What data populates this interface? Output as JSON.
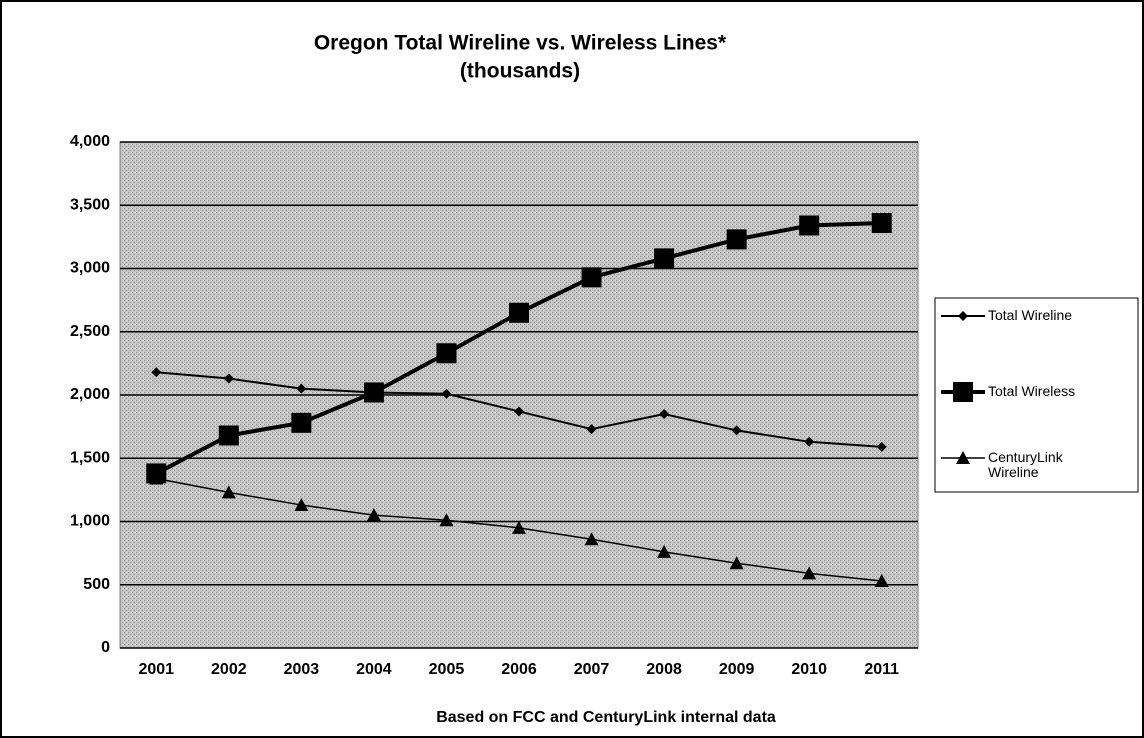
{
  "chart_data": {
    "type": "line",
    "title": "Oregon Total Wireline vs. Wireless Lines*",
    "subtitle": "(thousands)",
    "x_label": "Based on FCC and CenturyLink internal data",
    "categories": [
      "2001",
      "2002",
      "2003",
      "2004",
      "2005",
      "2006",
      "2007",
      "2008",
      "2009",
      "2010",
      "2011"
    ],
    "series": [
      {
        "name": "Total Wireline",
        "color": "#000000",
        "marker": "diamond",
        "values": [
          2180,
          2130,
          2050,
          2020,
          2010,
          1870,
          1730,
          1850,
          1720,
          1630,
          1590
        ]
      },
      {
        "name": "Total Wireless",
        "color": "#000000",
        "marker": "square",
        "values": [
          1380,
          1680,
          1780,
          2020,
          2330,
          2650,
          2930,
          3080,
          3230,
          3340,
          3360
        ]
      },
      {
        "name": "CenturyLink Wireline",
        "color": "#000000",
        "marker": "triangle",
        "values": [
          1340,
          1230,
          1130,
          1050,
          1010,
          950,
          860,
          760,
          670,
          590,
          530
        ]
      }
    ],
    "ylim": [
      0,
      4000
    ],
    "yticks": [
      0,
      500,
      {
        "value": 1000,
        "label": "1,000"
      },
      {
        "value": 1500,
        "label": "1,500"
      },
      {
        "value": 2000,
        "label": "2,000"
      },
      {
        "value": 2500,
        "label": "2,500"
      },
      {
        "value": 3000,
        "label": "3,000"
      },
      {
        "value": 3500,
        "label": "3,500"
      },
      {
        "value": 4000,
        "label": "4,000"
      }
    ],
    "grid": true,
    "legend": "right"
  }
}
